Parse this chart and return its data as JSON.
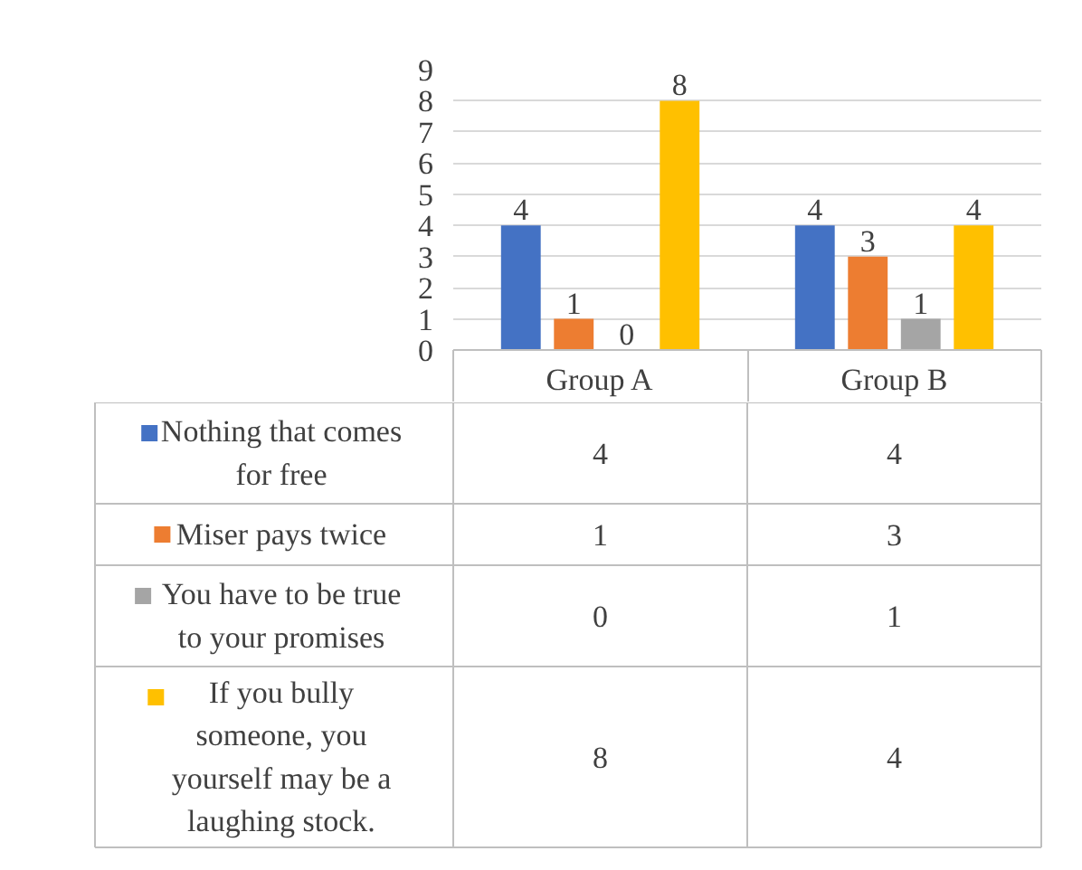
{
  "chart_data": {
    "type": "bar",
    "categories": [
      "Group A",
      "Group B"
    ],
    "series": [
      {
        "name": "Nothing that comes for free",
        "color": "#4472c4",
        "values": [
          4,
          4
        ],
        "value_labels": [
          "4",
          "4"
        ]
      },
      {
        "name": "Miser pays twice",
        "color": "#ed7d31",
        "values": [
          1,
          3
        ],
        "value_labels": [
          "1",
          "3"
        ]
      },
      {
        "name": "You have to be true to your promises",
        "color": "#a5a5a5",
        "values": [
          0,
          1
        ],
        "value_labels": [
          "0",
          "1"
        ]
      },
      {
        "name": "If you bully someone, you yourself may be a laughing stock.",
        "color": "#ffc000",
        "values": [
          8,
          4
        ],
        "value_labels": [
          "8",
          "4"
        ]
      }
    ],
    "ylim": [
      0,
      9
    ],
    "yticks": [
      0,
      1,
      2,
      3,
      4,
      5,
      6,
      7,
      8,
      9
    ],
    "grid": "y",
    "data_labels": true,
    "legend": "bottom"
  }
}
